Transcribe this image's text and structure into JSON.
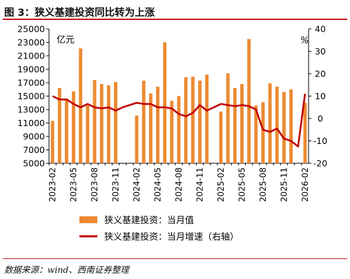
{
  "title": "图 3：狭义基建投资同比转为上涨",
  "source": "数据来源：wind、西南证券整理",
  "colors": {
    "bar": "#ec8a31",
    "line": "#c00000",
    "accent_rule": "#c8191d"
  },
  "chart_data": {
    "type": "bar+line",
    "left_unit": "亿元",
    "right_unit": "%",
    "left_ylim": [
      5000,
      25000
    ],
    "left_ticks": [
      5000,
      7000,
      9000,
      11000,
      13000,
      15000,
      17000,
      19000,
      21000,
      23000,
      25000
    ],
    "right_ylim": [
      -20,
      40
    ],
    "right_ticks": [
      -20,
      -10,
      0,
      10,
      20,
      30,
      40
    ],
    "x": [
      "2023-02",
      "2023-03",
      "2023-04",
      "2023-05",
      "2023-06",
      "2023-07",
      "2023-08",
      "2023-09",
      "2023-10",
      "2023-11",
      "2023-12",
      "2024-01",
      "2024-02",
      "2024-03",
      "2024-04",
      "2024-05",
      "2024-06",
      "2024-07",
      "2024-08",
      "2024-09",
      "2024-10",
      "2024-11",
      "2024-12",
      "2025-01",
      "2025-02",
      "2025-03",
      "2025-04",
      "2025-05",
      "2025-06",
      "2025-07",
      "2025-08",
      "2025-09",
      "2025-10",
      "2025-11",
      "2025-12",
      "2026-01",
      "2026-02"
    ],
    "xtick_labels": [
      "2023-02",
      "2023-05",
      "2023-08",
      "2023-11",
      "2024-02",
      "2024-05",
      "2024-08",
      "2024-11",
      "2025-02",
      "2025-05",
      "2025-08",
      "2025-11",
      "2026-02"
    ],
    "series": [
      {
        "name": "狭义基建投资：当月值",
        "type": "bar",
        "axis": "left",
        "values": [
          11300,
          16200,
          14600,
          15700,
          22100,
          13600,
          17400,
          16800,
          16600,
          17100,
          null,
          null,
          12100,
          17300,
          15400,
          16400,
          23000,
          14300,
          15000,
          17800,
          17900,
          17300,
          18200,
          null,
          12700,
          18400,
          16200,
          16800,
          23500,
          13600,
          14100,
          16900,
          16400,
          15600,
          16000,
          null,
          14000
        ]
      },
      {
        "name": "狭义基建投资：当月增速（右轴）",
        "type": "line",
        "axis": "right",
        "values": [
          10,
          8.5,
          8.5,
          6.5,
          5,
          6.5,
          5,
          4.5,
          5,
          3.5,
          5,
          null,
          7,
          6.5,
          6.5,
          5,
          5,
          4.5,
          2,
          1,
          2.5,
          6,
          3.5,
          null,
          6.5,
          6,
          5.5,
          6,
          5.5,
          4,
          -5,
          -6,
          -4.5,
          -9,
          -10,
          -12.5,
          11
        ]
      }
    ],
    "legend": "bottom",
    "grid": false
  }
}
